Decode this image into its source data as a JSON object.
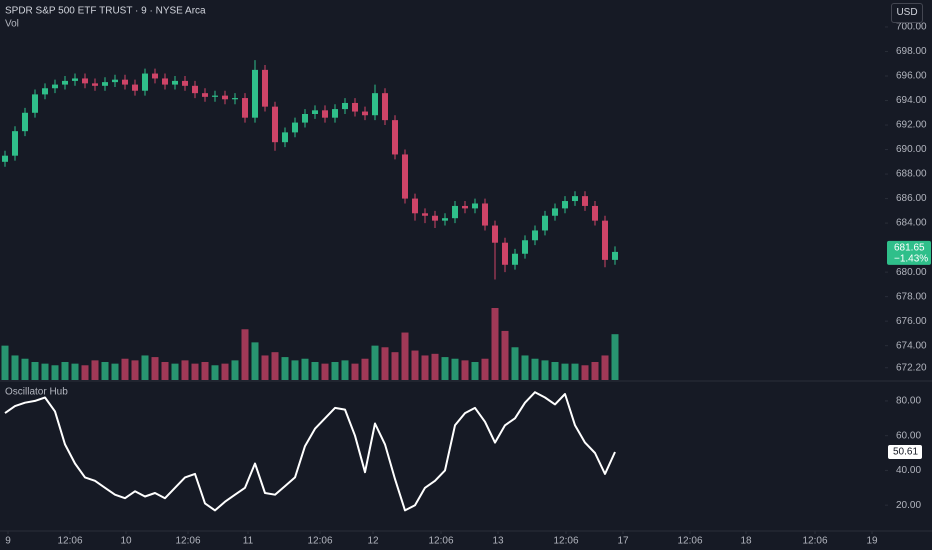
{
  "header": {
    "title": "SPDR S&P 500 ETF TRUST · 9 · NYSE Arca",
    "volume_label": "Vol",
    "currency": "USD",
    "change": "−1.43%"
  },
  "chart_data": [
    {
      "type": "candlestick",
      "up_color": "#2fbf8a",
      "down_color": "#cf4468",
      "xlim": [
        -0.5,
        88
      ],
      "xticks": [
        {
          "value": 0.3,
          "label": "9"
        },
        {
          "value": 6.5,
          "label": "12:06"
        },
        {
          "value": 12.1,
          "label": "10"
        },
        {
          "value": 18.3,
          "label": "12:06"
        },
        {
          "value": 24.3,
          "label": "11"
        },
        {
          "value": 31.5,
          "label": "12:06"
        },
        {
          "value": 36.8,
          "label": "12"
        },
        {
          "value": 43.6,
          "label": "12:06"
        },
        {
          "value": 49.3,
          "label": "13"
        },
        {
          "value": 56.1,
          "label": "12:06"
        },
        {
          "value": 61.8,
          "label": "17"
        },
        {
          "value": 68.5,
          "label": "12:06"
        },
        {
          "value": 74.1,
          "label": "18"
        },
        {
          "value": 81,
          "label": "12:06"
        },
        {
          "value": 86.7,
          "label": "19"
        }
      ],
      "ylim": [
        671.2,
        702.2
      ],
      "yticks": [
        {
          "value": 700,
          "label": "700.00"
        },
        {
          "value": 698,
          "label": "698.00"
        },
        {
          "value": 696,
          "label": "696.00"
        },
        {
          "value": 694,
          "label": "694.00"
        },
        {
          "value": 692,
          "label": "692.00"
        },
        {
          "value": 690,
          "label": "690.00"
        },
        {
          "value": 688,
          "label": "688.00"
        },
        {
          "value": 686,
          "label": "686.00"
        },
        {
          "value": 684,
          "label": "684.00"
        },
        {
          "value": 680,
          "label": "680.00"
        },
        {
          "value": 678,
          "label": "678.00"
        },
        {
          "value": 676,
          "label": "676.00"
        },
        {
          "value": 674,
          "label": "674.00"
        },
        {
          "value": 672.2,
          "label": "672.20"
        }
      ],
      "open": [
        689.0,
        689.5,
        691.5,
        693,
        694.5,
        695,
        695.3,
        695.6,
        695.8,
        695.4,
        695.2,
        695.5,
        695.7,
        695.3,
        694.8,
        696.2,
        695.8,
        695.3,
        695.6,
        695.2,
        694.6,
        694.3,
        694.4,
        694.1,
        694.2,
        692.6,
        696.5,
        693.5,
        690.6,
        691.4,
        692.2,
        692.9,
        693.2,
        692.6,
        693.3,
        693.8,
        693.1,
        692.8,
        694.6,
        692.4,
        689.6,
        686.0,
        684.8,
        684.6,
        684.2,
        684.4,
        685.4,
        685.2,
        685.6,
        683.8,
        682.4,
        680.6,
        681.5,
        682.6,
        683.4,
        684.6,
        685.2,
        685.8,
        686.2,
        685.4,
        684.2,
        681.0
      ],
      "high": [
        689.9,
        691.9,
        693.4,
        694.9,
        695.4,
        695.7,
        696.0,
        696.2,
        696.2,
        695.8,
        695.9,
        696.1,
        696.1,
        695.7,
        696.6,
        696.6,
        696.2,
        696.0,
        696.0,
        695.6,
        695.0,
        694.8,
        694.8,
        694.6,
        694.6,
        697.3,
        696.9,
        693.9,
        691.8,
        692.6,
        693.3,
        693.6,
        693.6,
        693.7,
        694.2,
        694.2,
        693.5,
        695.3,
        695.0,
        692.8,
        690.0,
        686.4,
        685.2,
        685.0,
        684.8,
        685.8,
        685.8,
        686.0,
        686.0,
        684.2,
        682.8,
        681.9,
        683.0,
        683.8,
        685.0,
        685.6,
        686.2,
        686.6,
        686.6,
        685.8,
        684.6,
        682.1
      ],
      "low": [
        688.6,
        689.1,
        691.1,
        692.6,
        694.1,
        694.6,
        694.9,
        695.2,
        695.0,
        694.8,
        694.8,
        695.1,
        694.9,
        694.4,
        694.4,
        695.4,
        694.9,
        694.9,
        694.8,
        694.2,
        693.9,
        693.9,
        693.7,
        693.7,
        692.2,
        692.2,
        693.1,
        689.9,
        690.2,
        691.0,
        691.8,
        692.5,
        692.2,
        692.2,
        692.9,
        692.7,
        692.4,
        692.4,
        692.0,
        689.2,
        685.6,
        684.2,
        684.0,
        683.6,
        683.8,
        684.0,
        684.8,
        684.8,
        683.4,
        679.4,
        680.0,
        680.2,
        681.1,
        682.2,
        683.0,
        684.2,
        684.8,
        685.4,
        685.0,
        683.8,
        680.4,
        680.6
      ],
      "close": [
        689.5,
        691.5,
        693,
        694.5,
        695,
        695.3,
        695.6,
        695.8,
        695.4,
        695.2,
        695.5,
        695.7,
        695.3,
        694.8,
        696.2,
        695.8,
        695.3,
        695.6,
        695.2,
        694.6,
        694.3,
        694.4,
        694.1,
        694.2,
        692.6,
        696.5,
        693.5,
        690.6,
        691.4,
        692.2,
        692.9,
        693.2,
        692.6,
        693.3,
        693.8,
        693.1,
        692.8,
        694.6,
        692.4,
        689.6,
        686.0,
        684.8,
        684.6,
        684.2,
        684.4,
        685.4,
        685.2,
        685.6,
        683.8,
        682.4,
        680.6,
        681.5,
        682.6,
        683.4,
        684.6,
        685.2,
        685.8,
        686.2,
        685.4,
        684.2,
        681.0,
        681.65
      ],
      "volume": [
        42,
        30,
        26,
        22,
        20,
        18,
        22,
        20,
        18,
        24,
        22,
        20,
        26,
        24,
        30,
        28,
        22,
        20,
        24,
        20,
        22,
        18,
        20,
        24,
        62,
        46,
        30,
        34,
        28,
        24,
        26,
        22,
        20,
        22,
        24,
        20,
        26,
        42,
        40,
        34,
        58,
        36,
        30,
        32,
        28,
        26,
        24,
        22,
        26,
        88,
        60,
        40,
        30,
        26,
        24,
        22,
        20,
        20,
        18,
        22,
        30,
        56
      ]
    },
    {
      "type": "line",
      "title": "Oscillator Hub",
      "color": "#ffffff",
      "xlim": [
        -0.5,
        88
      ],
      "ylim": [
        5.7,
        90.9
      ],
      "yticks": [
        {
          "value": 80,
          "label": "80.00"
        },
        {
          "value": 60,
          "label": "60.00"
        },
        {
          "value": 40,
          "label": "40.00"
        },
        {
          "value": 20,
          "label": "20.00"
        }
      ],
      "values": [
        73,
        77,
        79,
        80,
        82,
        74,
        55,
        44,
        36,
        34,
        30,
        26,
        24,
        28,
        25,
        27,
        24,
        30,
        36,
        38,
        21,
        17,
        22,
        26,
        30,
        44,
        27,
        26,
        31,
        36,
        54,
        64,
        70,
        76,
        75,
        60,
        39,
        67,
        55,
        35,
        17,
        20,
        30,
        34,
        40,
        66,
        73,
        76,
        68,
        56,
        66,
        70,
        79,
        85,
        82,
        78,
        84,
        66,
        56,
        50,
        38,
        50.61
      ]
    }
  ]
}
